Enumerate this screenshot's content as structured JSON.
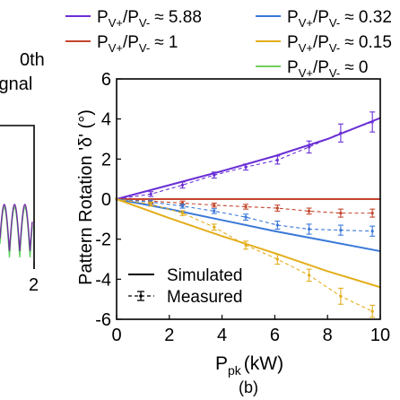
{
  "left_panel": {
    "title_lines": [
      "0th",
      "ignal"
    ],
    "tick_label": "2",
    "series_colors": [
      "#7030a0",
      "#5fd35f"
    ]
  },
  "legend": {
    "entries": [
      {
        "base": "P",
        "sub1": "V+",
        "mid": "/P",
        "sub2": "V-",
        "rel": "≈ 5.88",
        "color": "#6a2fd6"
      },
      {
        "base": "P",
        "sub1": "V+",
        "mid": "/P",
        "sub2": "V-",
        "rel": "≈ 0.32",
        "color": "#3a78d8"
      },
      {
        "base": "P",
        "sub1": "V+",
        "mid": "/P",
        "sub2": "V-",
        "rel": "≈ 1",
        "color": "#c4452c"
      },
      {
        "base": "P",
        "sub1": "V+",
        "mid": "/P",
        "sub2": "V-",
        "rel": "≈ 0.15",
        "color": "#e3ae1c"
      },
      {
        "base": "P",
        "sub1": "V+",
        "mid": "/P",
        "sub2": "V-",
        "rel": "≈ 0",
        "color": "#6ed05c"
      }
    ]
  },
  "style_legend": {
    "simulated": "Simulated",
    "measured": "Measured"
  },
  "panel_label": "(b)",
  "chart_data": {
    "type": "line",
    "xlabel_base": "P",
    "xlabel_sub": "pk",
    "xlabel_unit": "(kW)",
    "ylabel": "Pattern Rotation 'δ' (°)",
    "xlim": [
      0,
      10
    ],
    "ylim": [
      -6,
      6
    ],
    "xticks": [
      0,
      2,
      4,
      6,
      8,
      10
    ],
    "yticks": [
      -6,
      -4,
      -2,
      0,
      2,
      4,
      6
    ],
    "series": [
      {
        "color": "#6a2fd6",
        "simulated": {
          "x": [
            0,
            2,
            4,
            6,
            8,
            10
          ],
          "y": [
            0,
            0.7,
            1.4,
            2.15,
            3.0,
            4.05
          ]
        },
        "measured": {
          "x": [
            0,
            1.3,
            2.5,
            3.7,
            4.9,
            6.1,
            7.3,
            8.5,
            9.7
          ],
          "y": [
            0,
            0.25,
            0.7,
            1.2,
            1.6,
            1.95,
            2.6,
            3.3,
            3.85
          ],
          "err": [
            0,
            0.12,
            0.15,
            0.15,
            0.15,
            0.2,
            0.3,
            0.45,
            0.5
          ]
        }
      },
      {
        "color": "#c4452c",
        "simulated": {
          "x": [
            0,
            10
          ],
          "y": [
            0,
            0
          ]
        },
        "measured": {
          "x": [
            0,
            1.3,
            2.5,
            3.7,
            4.9,
            6.1,
            7.3,
            8.5,
            9.7
          ],
          "y": [
            0,
            -0.1,
            -0.2,
            -0.3,
            -0.38,
            -0.45,
            -0.6,
            -0.7,
            -0.7
          ],
          "err": [
            0,
            0.1,
            0.1,
            0.1,
            0.12,
            0.15,
            0.15,
            0.2,
            0.2
          ]
        }
      },
      {
        "color": "#3a78d8",
        "simulated": {
          "x": [
            0,
            2,
            4,
            6,
            8,
            10
          ],
          "y": [
            0,
            -0.5,
            -1.05,
            -1.6,
            -2.1,
            -2.6
          ]
        },
        "measured": {
          "x": [
            0,
            1.3,
            2.5,
            3.7,
            4.9,
            6.1,
            7.3,
            8.5,
            9.7
          ],
          "y": [
            0,
            -0.15,
            -0.35,
            -0.6,
            -0.9,
            -1.3,
            -1.5,
            -1.55,
            -1.6
          ],
          "err": [
            0,
            0.1,
            0.1,
            0.12,
            0.15,
            0.2,
            0.25,
            0.25,
            0.25
          ]
        }
      },
      {
        "color": "#e3ae1c",
        "simulated": {
          "x": [
            0,
            2,
            4,
            6,
            8,
            10
          ],
          "y": [
            0,
            -0.95,
            -1.85,
            -2.7,
            -3.6,
            -4.4
          ]
        },
        "measured": {
          "x": [
            0,
            1.3,
            2.5,
            3.7,
            4.9,
            6.1,
            7.3,
            8.5,
            9.7
          ],
          "y": [
            0,
            -0.25,
            -0.7,
            -1.4,
            -2.3,
            -3.0,
            -3.8,
            -4.85,
            -5.6
          ],
          "err": [
            0,
            0.1,
            0.12,
            0.15,
            0.2,
            0.25,
            0.3,
            0.4,
            0.3
          ]
        }
      }
    ]
  }
}
